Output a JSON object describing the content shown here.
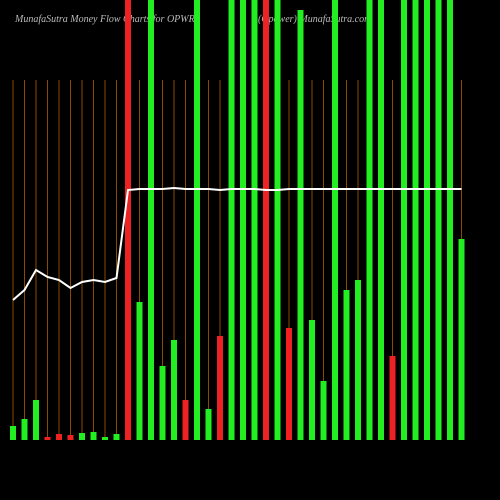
{
  "chart_data": {
    "type": "bar",
    "title": "MunafaSutra  Money Flow  Charts for OPWR",
    "subtitle": "(Opower) MunafaSutra.com",
    "categories": [
      null,
      null,
      null,
      null,
      null,
      null,
      null,
      null,
      null,
      null,
      null,
      null,
      null,
      null,
      null,
      null,
      null,
      null,
      null,
      null,
      null,
      null,
      null,
      null,
      null,
      null,
      null,
      null,
      null,
      null,
      null,
      null,
      null,
      null,
      null,
      null,
      null,
      null,
      null,
      null
    ],
    "ylim": [
      0,
      440
    ],
    "bars": {
      "values": [
        14,
        21,
        40,
        3,
        6,
        5,
        7,
        8,
        3,
        6,
        440,
        138,
        440,
        74,
        100,
        40,
        440,
        31,
        104,
        440,
        440,
        440,
        440,
        440,
        112,
        430,
        120,
        59,
        440,
        150,
        160,
        440,
        440,
        84,
        440,
        440,
        440,
        440,
        440,
        201
      ],
      "colors": [
        "#22ee22",
        "#22ee22",
        "#22ee22",
        "#ee2222",
        "#ee2222",
        "#ee2222",
        "#22ee22",
        "#22ee22",
        "#22ee22",
        "#22ee22",
        "#ee2222",
        "#22ee22",
        "#22ee22",
        "#22ee22",
        "#22ee22",
        "#ee2222",
        "#22ee22",
        "#22ee22",
        "#ee2222",
        "#22ee22",
        "#22ee22",
        "#22ee22",
        "#ee2222",
        "#22ee22",
        "#ee2222",
        "#22ee22",
        "#22ee22",
        "#22ee22",
        "#22ee22",
        "#22ee22",
        "#22ee22",
        "#22ee22",
        "#22ee22",
        "#ee2222",
        "#22ee22",
        "#22ee22",
        "#22ee22",
        "#22ee22",
        "#22ee22",
        "#22ee22"
      ]
    },
    "line": {
      "color": "#ffffff",
      "values": [
        140,
        150,
        170,
        163,
        160,
        152,
        158,
        160,
        158,
        162,
        250,
        251,
        251,
        251,
        252,
        251,
        251,
        251,
        250,
        251,
        251,
        251,
        250,
        250,
        251,
        251,
        251,
        251,
        251,
        251,
        251,
        251,
        251,
        251,
        251,
        251,
        251,
        251,
        251,
        251
      ]
    },
    "grid_color": "#8a4a00"
  }
}
